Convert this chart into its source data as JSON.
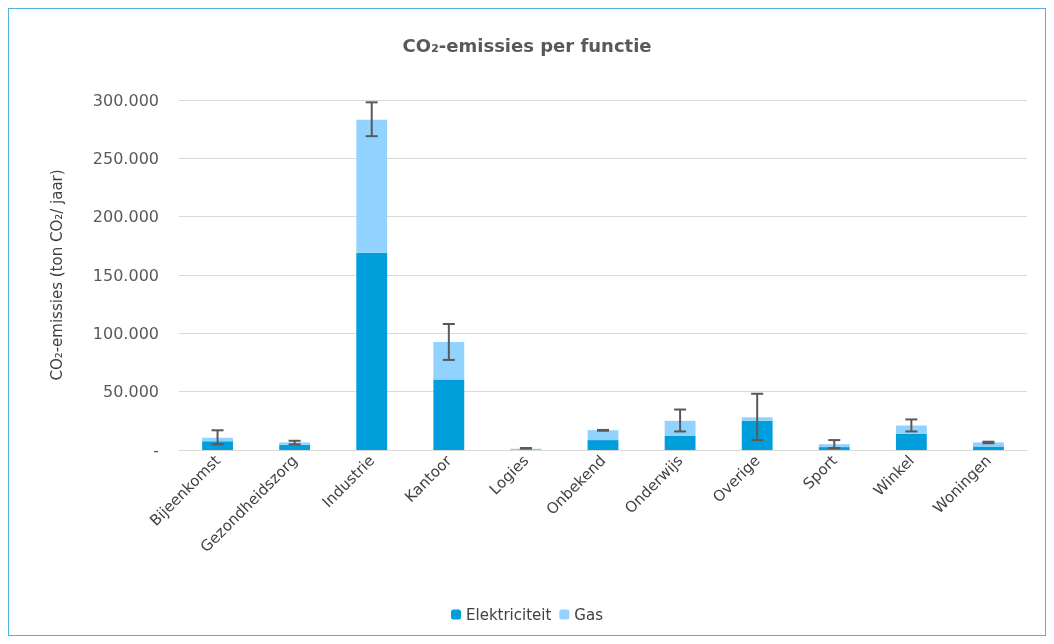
{
  "chart_data": {
    "type": "bar",
    "title": "CO₂-emissies per functie",
    "ylabel": "CO₂-emissies (ton CO₂/ jaar)",
    "categories": [
      "Bijeenkomst",
      "Gezondheidszorg",
      "Industrie",
      "Kantoor",
      "Logies",
      "Onbekend",
      "Onderwijs",
      "Overige",
      "Sport",
      "Winkel",
      "Woningen"
    ],
    "stacked": true,
    "grid": "y",
    "legend": "bottom",
    "ylim": [
      0,
      300000
    ],
    "yticks": [
      {
        "value": 0,
        "label": "-"
      },
      {
        "value": 50000,
        "label": "50.000"
      },
      {
        "value": 100000,
        "label": "100.000"
      },
      {
        "value": 150000,
        "label": "150.000"
      },
      {
        "value": 200000,
        "label": "200.000"
      },
      {
        "value": 250000,
        "label": "250.000"
      },
      {
        "value": 300000,
        "label": "300.000"
      }
    ],
    "series": [
      {
        "name": "Elektriciteit",
        "color": "#009fdb",
        "values": [
          7500,
          4500,
          169000,
          60500,
          500,
          8500,
          12000,
          25000,
          2500,
          14000,
          3000
        ]
      },
      {
        "name": "Gas",
        "color": "#91d3fe",
        "values": [
          3000,
          2000,
          114000,
          32000,
          500,
          8500,
          13000,
          3000,
          2500,
          7000,
          3500
        ],
        "errors": [
          [
            4900,
            16900
          ],
          [
            4900,
            7900
          ],
          [
            269000,
            298000
          ],
          [
            77200,
            108000
          ],
          [
            1200,
            1700
          ],
          [
            16500,
            17200
          ],
          [
            15900,
            34700
          ],
          [
            8500,
            48200
          ],
          [
            1700,
            8500
          ],
          [
            15900,
            26200
          ],
          [
            5800,
            7100
          ]
        ]
      }
    ]
  }
}
